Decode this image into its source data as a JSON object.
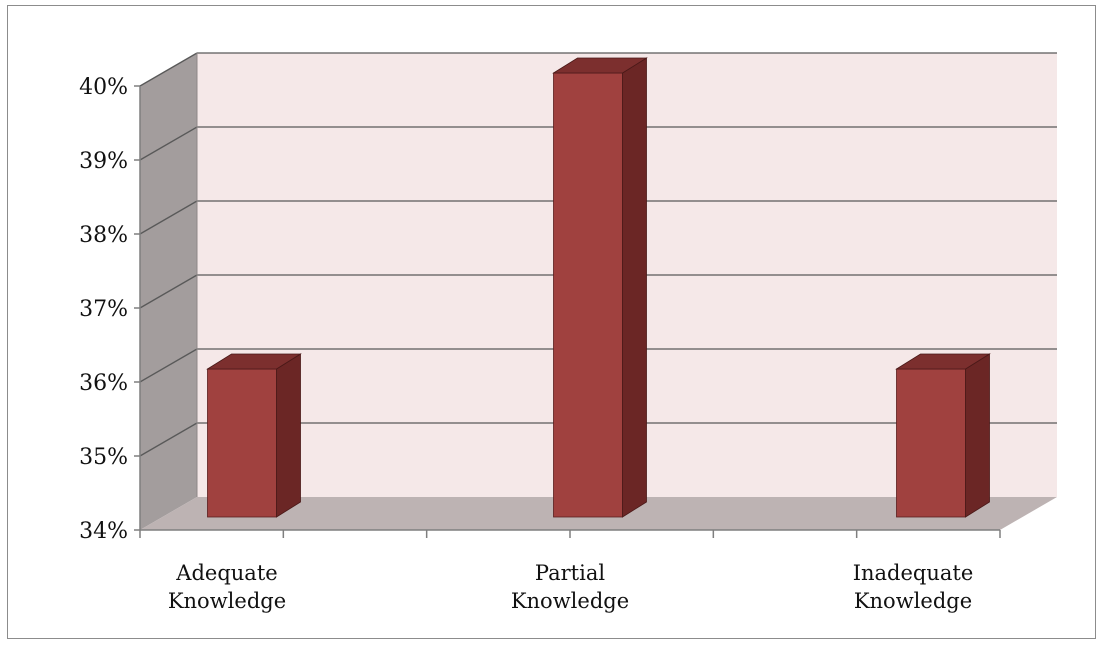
{
  "chart_data": {
    "type": "bar",
    "style": "3d-column",
    "categories": [
      "Adequate\nKnowledge",
      "Partial\nKnowledge",
      "Inadequate\nKnowledge"
    ],
    "values": [
      36,
      40,
      36
    ],
    "ylim": [
      34,
      40
    ],
    "y_ticks": [
      "34%",
      "35%",
      "36%",
      "37%",
      "38%",
      "39%",
      "40%"
    ],
    "title": "",
    "xlabel": "",
    "ylabel": "",
    "grid": true,
    "legend": "none",
    "colors": {
      "bar_front": "#a0413f",
      "bar_side": "#6b2625",
      "bar_top": "#7c2f2e",
      "back_wall": "#f5e8e8",
      "side_wall": "#a39d9d",
      "floor": "#bdb3b3",
      "grid": "#595959"
    }
  }
}
